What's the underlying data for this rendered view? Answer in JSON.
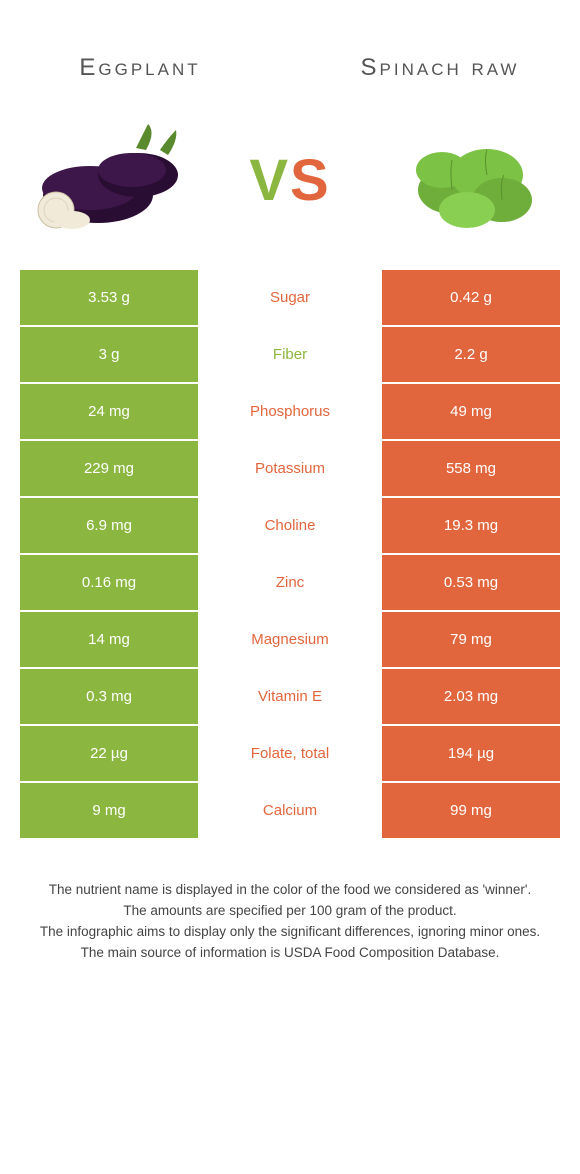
{
  "colors": {
    "left": "#8bb63f",
    "right": "#e2663d",
    "background": "#ffffff",
    "text": "#444444"
  },
  "fonts": {
    "title_size": 24,
    "vs_size": 58,
    "cell_size": 15,
    "footer_size": 13.5
  },
  "left_food": {
    "title": "Eggplant"
  },
  "right_food": {
    "title": "Spinach raw"
  },
  "vs_label": {
    "v": "V",
    "s": "S"
  },
  "rows": [
    {
      "nutrient": "Sugar",
      "left": "3.53 g",
      "right": "0.42 g",
      "winner": "right"
    },
    {
      "nutrient": "Fiber",
      "left": "3 g",
      "right": "2.2 g",
      "winner": "left"
    },
    {
      "nutrient": "Phosphorus",
      "left": "24 mg",
      "right": "49 mg",
      "winner": "right"
    },
    {
      "nutrient": "Potassium",
      "left": "229 mg",
      "right": "558 mg",
      "winner": "right"
    },
    {
      "nutrient": "Choline",
      "left": "6.9 mg",
      "right": "19.3 mg",
      "winner": "right"
    },
    {
      "nutrient": "Zinc",
      "left": "0.16 mg",
      "right": "0.53 mg",
      "winner": "right"
    },
    {
      "nutrient": "Magnesium",
      "left": "14 mg",
      "right": "79 mg",
      "winner": "right"
    },
    {
      "nutrient": "Vitamin E",
      "left": "0.3 mg",
      "right": "2.03 mg",
      "winner": "right"
    },
    {
      "nutrient": "Folate, total",
      "left": "22 µg",
      "right": "194 µg",
      "winner": "right"
    },
    {
      "nutrient": "Calcium",
      "left": "9 mg",
      "right": "99 mg",
      "winner": "right"
    }
  ],
  "footer_lines": [
    "The nutrient name is displayed in the color of the food we considered as 'winner'.",
    "The amounts are specified per 100 gram of the product.",
    "The infographic aims to display only the significant differences, ignoring minor ones.",
    "The main source of information is USDA Food Composition Database."
  ]
}
